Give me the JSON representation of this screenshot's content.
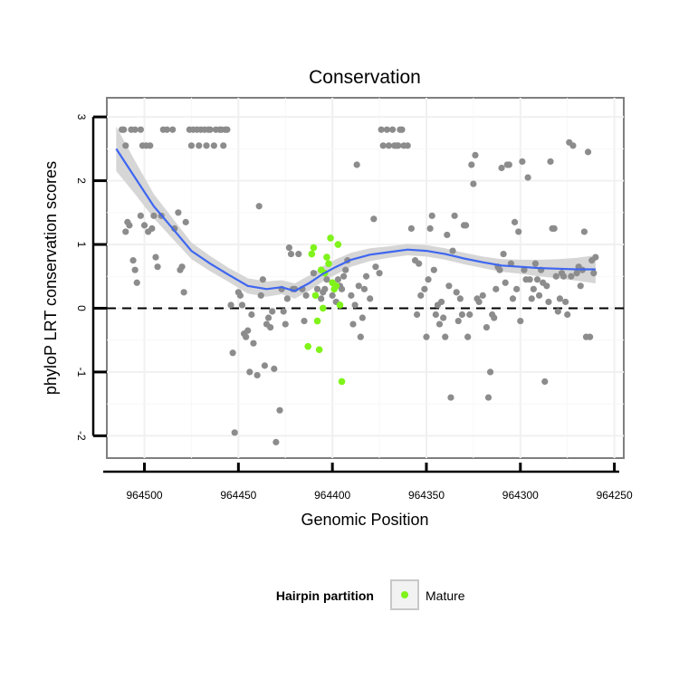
{
  "chart_data": {
    "type": "scatter",
    "title": "Conservation",
    "xlabel": "Genomic Position",
    "ylabel": "phyloP LRT conservation scores",
    "xlim": [
      964520,
      964245
    ],
    "ylim": [
      -2.35,
      3.3
    ],
    "x_reversed": true,
    "x_ticks": [
      964500,
      964450,
      964400,
      964350,
      964300,
      964250
    ],
    "x_tick_labels": [
      "964500",
      "964450",
      "964400",
      "964350",
      "964300",
      "964250"
    ],
    "y_ticks": [
      -2,
      -1,
      0,
      1,
      2,
      3
    ],
    "y_tick_labels": [
      "-2",
      "-1",
      "0",
      "1",
      "2",
      "3"
    ],
    "reference_line": {
      "y": 0,
      "style": "dashed"
    },
    "legend": {
      "title": "Hairpin partition",
      "entries": [
        "Mature"
      ],
      "position": "bottom"
    },
    "colors": {
      "other": "#8c8c8c",
      "mature": "#7ff31a",
      "smooth": "#3e66f0",
      "ribbon": "#d4d4d4"
    },
    "series": [
      {
        "name": "Other",
        "points": [
          [
            964512,
            2.8
          ],
          [
            964511,
            2.8
          ],
          [
            964510,
            2.55
          ],
          [
            964507,
            2.8
          ],
          [
            964505,
            2.8
          ],
          [
            964502,
            2.8
          ],
          [
            964510,
            1.2
          ],
          [
            964509,
            1.35
          ],
          [
            964508,
            1.3
          ],
          [
            964506,
            0.75
          ],
          [
            964505,
            0.6
          ],
          [
            964504,
            0.4
          ],
          [
            964502,
            1.45
          ],
          [
            964501,
            2.55
          ],
          [
            964499,
            2.55
          ],
          [
            964497,
            2.55
          ],
          [
            964500,
            1.3
          ],
          [
            964498,
            1.2
          ],
          [
            964496,
            1.25
          ],
          [
            964495,
            1.45
          ],
          [
            964494,
            0.8
          ],
          [
            964493,
            0.65
          ],
          [
            964491,
            1.45
          ],
          [
            964490,
            2.8
          ],
          [
            964488,
            2.8
          ],
          [
            964485,
            2.8
          ],
          [
            964484,
            1.25
          ],
          [
            964482,
            1.5
          ],
          [
            964481,
            0.6
          ],
          [
            964480,
            0.65
          ],
          [
            964479,
            0.25
          ],
          [
            964478,
            1.35
          ],
          [
            964476,
            2.8
          ],
          [
            964475,
            2.55
          ],
          [
            964474,
            2.8
          ],
          [
            964472,
            2.8
          ],
          [
            964471,
            2.55
          ],
          [
            964470,
            2.8
          ],
          [
            964468,
            2.8
          ],
          [
            964467,
            2.55
          ],
          [
            964466,
            2.8
          ],
          [
            964465,
            2.8
          ],
          [
            964463,
            2.55
          ],
          [
            964462,
            2.8
          ],
          [
            964460,
            2.8
          ],
          [
            964459,
            2.8
          ],
          [
            964458,
            2.55
          ],
          [
            964457,
            2.8
          ],
          [
            964456,
            2.8
          ],
          [
            964454,
            0.05
          ],
          [
            964453,
            -0.7
          ],
          [
            964452,
            -1.95
          ],
          [
            964450,
            0.25
          ],
          [
            964449,
            0.2
          ],
          [
            964448,
            0.05
          ],
          [
            964447,
            -0.4
          ],
          [
            964446,
            -0.45
          ],
          [
            964445,
            -0.35
          ],
          [
            964444,
            -1.0
          ],
          [
            964443,
            -0.1
          ],
          [
            964442,
            -0.55
          ],
          [
            964440,
            -1.05
          ],
          [
            964439,
            1.6
          ],
          [
            964438,
            0.2
          ],
          [
            964437,
            0.45
          ],
          [
            964436,
            -0.9
          ],
          [
            964435,
            -0.25
          ],
          [
            964434,
            -0.15
          ],
          [
            964433,
            -0.3
          ],
          [
            964432,
            -0.05
          ],
          [
            964431,
            -0.95
          ],
          [
            964430,
            -2.1
          ],
          [
            964428,
            -1.6
          ],
          [
            964427,
            0.3
          ],
          [
            964426,
            -0.05
          ],
          [
            964425,
            -0.25
          ],
          [
            964424,
            0.15
          ],
          [
            964423,
            0.95
          ],
          [
            964422,
            0.85
          ],
          [
            964421,
            0.3
          ],
          [
            964420,
            0.3
          ],
          [
            964418,
            0.85
          ],
          [
            964416,
            0.3
          ],
          [
            964415,
            -0.2
          ],
          [
            964414,
            0.2
          ],
          [
            964410,
            0.55
          ],
          [
            964408,
            0.3
          ],
          [
            964406,
            0.15
          ],
          [
            964405,
            0.25
          ],
          [
            964404,
            0.3
          ],
          [
            964403,
            0.45
          ],
          [
            964400,
            0.2
          ],
          [
            964398,
            0.1
          ],
          [
            964397,
            0.45
          ],
          [
            964396,
            0.35
          ],
          [
            964395,
            0.3
          ],
          [
            964394,
            0.5
          ],
          [
            964393,
            0.6
          ],
          [
            964392,
            0.75
          ],
          [
            964390,
            0.2
          ],
          [
            964389,
            -0.25
          ],
          [
            964388,
            0.05
          ],
          [
            964387,
            2.25
          ],
          [
            964386,
            0.35
          ],
          [
            964385,
            -0.45
          ],
          [
            964384,
            -0.15
          ],
          [
            964383,
            0.3
          ],
          [
            964382,
            0.5
          ],
          [
            964380,
            0.15
          ],
          [
            964378,
            1.4
          ],
          [
            964377,
            0.65
          ],
          [
            964375,
            0.55
          ],
          [
            964374,
            2.8
          ],
          [
            964373,
            2.55
          ],
          [
            964371,
            2.8
          ],
          [
            964370,
            2.55
          ],
          [
            964368,
            2.8
          ],
          [
            964367,
            2.55
          ],
          [
            964366,
            2.55
          ],
          [
            964365,
            2.55
          ],
          [
            964364,
            2.8
          ],
          [
            964363,
            2.8
          ],
          [
            964362,
            2.55
          ],
          [
            964360,
            2.55
          ],
          [
            964358,
            1.25
          ],
          [
            964356,
            0.75
          ],
          [
            964355,
            -0.1
          ],
          [
            964354,
            0.7
          ],
          [
            964353,
            0.2
          ],
          [
            964351,
            0.3
          ],
          [
            964350,
            -0.45
          ],
          [
            964349,
            0.45
          ],
          [
            964348,
            1.25
          ],
          [
            964347,
            1.45
          ],
          [
            964346,
            0.6
          ],
          [
            964345,
            -0.1
          ],
          [
            964344,
            0.05
          ],
          [
            964343,
            -0.25
          ],
          [
            964342,
            0.1
          ],
          [
            964341,
            -0.15
          ],
          [
            964340,
            -0.45
          ],
          [
            964339,
            1.15
          ],
          [
            964338,
            0.35
          ],
          [
            964337,
            -1.4
          ],
          [
            964336,
            0.9
          ],
          [
            964335,
            1.45
          ],
          [
            964334,
            0.25
          ],
          [
            964333,
            -0.2
          ],
          [
            964332,
            0.15
          ],
          [
            964331,
            -0.1
          ],
          [
            964330,
            1.3
          ],
          [
            964329,
            1.3
          ],
          [
            964328,
            -0.45
          ],
          [
            964327,
            -0.1
          ],
          [
            964326,
            2.25
          ],
          [
            964325,
            1.95
          ],
          [
            964324,
            2.4
          ],
          [
            964323,
            0.15
          ],
          [
            964322,
            0.1
          ],
          [
            964320,
            0.2
          ],
          [
            964318,
            -0.3
          ],
          [
            964317,
            -1.4
          ],
          [
            964316,
            -1.0
          ],
          [
            964315,
            -0.1
          ],
          [
            964314,
            -0.15
          ],
          [
            964313,
            0.3
          ],
          [
            964312,
            0.65
          ],
          [
            964311,
            0.6
          ],
          [
            964310,
            2.2
          ],
          [
            964309,
            0.85
          ],
          [
            964308,
            0.4
          ],
          [
            964307,
            2.25
          ],
          [
            964306,
            2.25
          ],
          [
            964305,
            0.7
          ],
          [
            964304,
            0.15
          ],
          [
            964303,
            1.35
          ],
          [
            964302,
            0.3
          ],
          [
            964301,
            1.2
          ],
          [
            964300,
            -0.2
          ],
          [
            964299,
            2.3
          ],
          [
            964298,
            0.6
          ],
          [
            964297,
            0.45
          ],
          [
            964296,
            2.05
          ],
          [
            964295,
            0.45
          ],
          [
            964294,
            0.15
          ],
          [
            964293,
            0.3
          ],
          [
            964292,
            0.7
          ],
          [
            964291,
            0.45
          ],
          [
            964290,
            0.2
          ],
          [
            964289,
            0.6
          ],
          [
            964288,
            0.4
          ],
          [
            964287,
            -1.15
          ],
          [
            964286,
            0.35
          ],
          [
            964285,
            0.1
          ],
          [
            964284,
            2.3
          ],
          [
            964283,
            1.25
          ],
          [
            964282,
            1.25
          ],
          [
            964281,
            0.5
          ],
          [
            964280,
            -0.05
          ],
          [
            964279,
            0.15
          ],
          [
            964278,
            0.55
          ],
          [
            964277,
            0.5
          ],
          [
            964276,
            0.1
          ],
          [
            964275,
            -0.1
          ],
          [
            964274,
            2.6
          ],
          [
            964273,
            0.5
          ],
          [
            964272,
            2.55
          ],
          [
            964270,
            0.55
          ],
          [
            964269,
            0.65
          ],
          [
            964268,
            0.35
          ],
          [
            964267,
            0.6
          ],
          [
            964266,
            1.2
          ],
          [
            964265,
            -0.45
          ],
          [
            964264,
            2.45
          ],
          [
            964263,
            -0.45
          ],
          [
            964262,
            0.75
          ],
          [
            964261,
            0.55
          ],
          [
            964260,
            0.8
          ]
        ]
      },
      {
        "name": "Mature",
        "points": [
          [
            964413,
            -0.6
          ],
          [
            964411,
            0.85
          ],
          [
            964410,
            0.95
          ],
          [
            964409,
            0.2
          ],
          [
            964408,
            -0.2
          ],
          [
            964407,
            -0.65
          ],
          [
            964406,
            0.6
          ],
          [
            964405,
            0.0
          ],
          [
            964404,
            0.55
          ],
          [
            964403,
            0.8
          ],
          [
            964402,
            0.7
          ],
          [
            964401,
            1.1
          ],
          [
            964400,
            0.4
          ],
          [
            964399,
            0.3
          ],
          [
            964398,
            0.35
          ],
          [
            964397,
            1.0
          ],
          [
            964396,
            0.05
          ],
          [
            964395,
            -1.15
          ]
        ]
      }
    ],
    "smooth": {
      "method": "loess",
      "points": [
        [
          964515,
          2.5
        ],
        [
          964505,
          2.05
        ],
        [
          964495,
          1.6
        ],
        [
          964485,
          1.25
        ],
        [
          964475,
          0.9
        ],
        [
          964465,
          0.7
        ],
        [
          964455,
          0.52
        ],
        [
          964445,
          0.35
        ],
        [
          964435,
          0.3
        ],
        [
          964427,
          0.33
        ],
        [
          964420,
          0.27
        ],
        [
          964412,
          0.4
        ],
        [
          964405,
          0.54
        ],
        [
          964398,
          0.65
        ],
        [
          964390,
          0.76
        ],
        [
          964380,
          0.84
        ],
        [
          964370,
          0.88
        ],
        [
          964360,
          0.92
        ],
        [
          964350,
          0.9
        ],
        [
          964340,
          0.85
        ],
        [
          964330,
          0.78
        ],
        [
          964320,
          0.72
        ],
        [
          964310,
          0.67
        ],
        [
          964300,
          0.65
        ],
        [
          964290,
          0.63
        ],
        [
          964280,
          0.62
        ],
        [
          964270,
          0.61
        ],
        [
          964260,
          0.61
        ]
      ],
      "se": [
        0.35,
        0.26,
        0.19,
        0.16,
        0.13,
        0.12,
        0.11,
        0.12,
        0.12,
        0.11,
        0.12,
        0.12,
        0.12,
        0.12,
        0.11,
        0.1,
        0.09,
        0.09,
        0.09,
        0.09,
        0.09,
        0.09,
        0.1,
        0.11,
        0.13,
        0.15,
        0.18,
        0.22
      ]
    }
  }
}
